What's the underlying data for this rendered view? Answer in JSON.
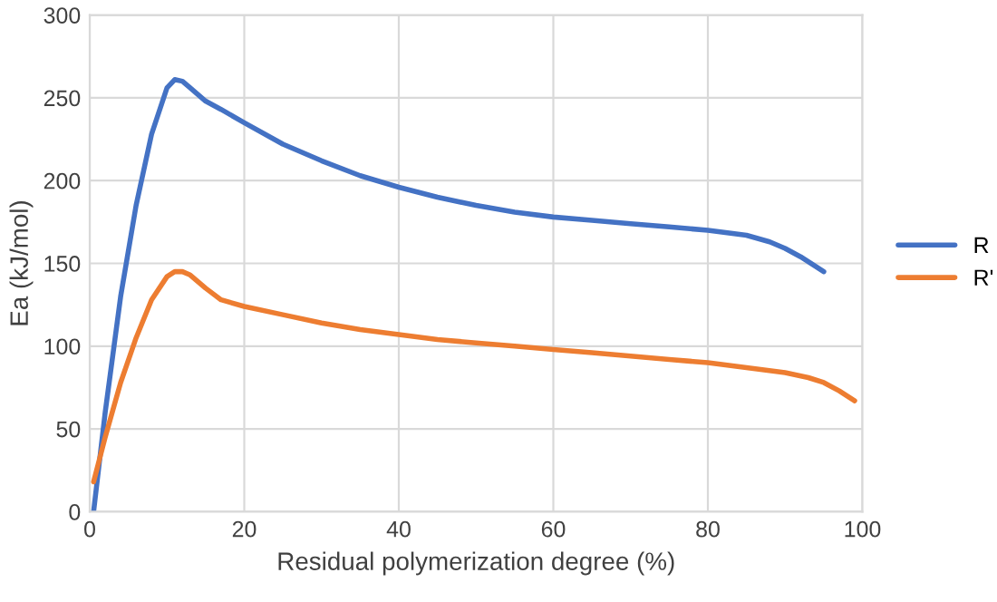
{
  "chart_data": {
    "type": "line",
    "xlabel": "Residual polymerization degree (%)",
    "ylabel": "Ea (kJ/mol)",
    "xlim": [
      0,
      100
    ],
    "xticks": [
      0,
      20,
      40,
      60,
      80,
      100
    ],
    "ylim": [
      0,
      300
    ],
    "yticks": [
      0,
      50,
      100,
      150,
      200,
      250,
      300
    ],
    "grid": true,
    "legend": "right",
    "marker": "none",
    "line_style": "solid",
    "series": [
      {
        "name": "R",
        "color": "#4472c4",
        "x": [
          0.5,
          2,
          4,
          6,
          8,
          10,
          11,
          12,
          13,
          15,
          17,
          20,
          25,
          30,
          35,
          40,
          45,
          50,
          55,
          60,
          65,
          70,
          75,
          80,
          85,
          88,
          90,
          92,
          95
        ],
        "values": [
          0,
          60,
          130,
          185,
          228,
          256,
          261,
          260,
          256,
          248,
          243,
          235,
          222,
          212,
          203,
          196,
          190,
          185,
          181,
          178,
          176,
          174,
          172,
          170,
          167,
          163,
          159,
          154,
          145
        ]
      },
      {
        "name": "R'",
        "color": "#ed7d31",
        "x": [
          0.5,
          2,
          4,
          6,
          8,
          10,
          11,
          12,
          13,
          15,
          17,
          20,
          25,
          30,
          35,
          40,
          45,
          50,
          55,
          60,
          65,
          70,
          75,
          80,
          85,
          90,
          93,
          95,
          97,
          99
        ],
        "values": [
          18,
          45,
          78,
          105,
          128,
          142,
          145,
          145,
          143,
          135,
          128,
          124,
          119,
          114,
          110,
          107,
          104,
          102,
          100,
          98,
          96,
          94,
          92,
          90,
          87,
          84,
          81,
          78,
          73,
          67
        ]
      }
    ]
  }
}
